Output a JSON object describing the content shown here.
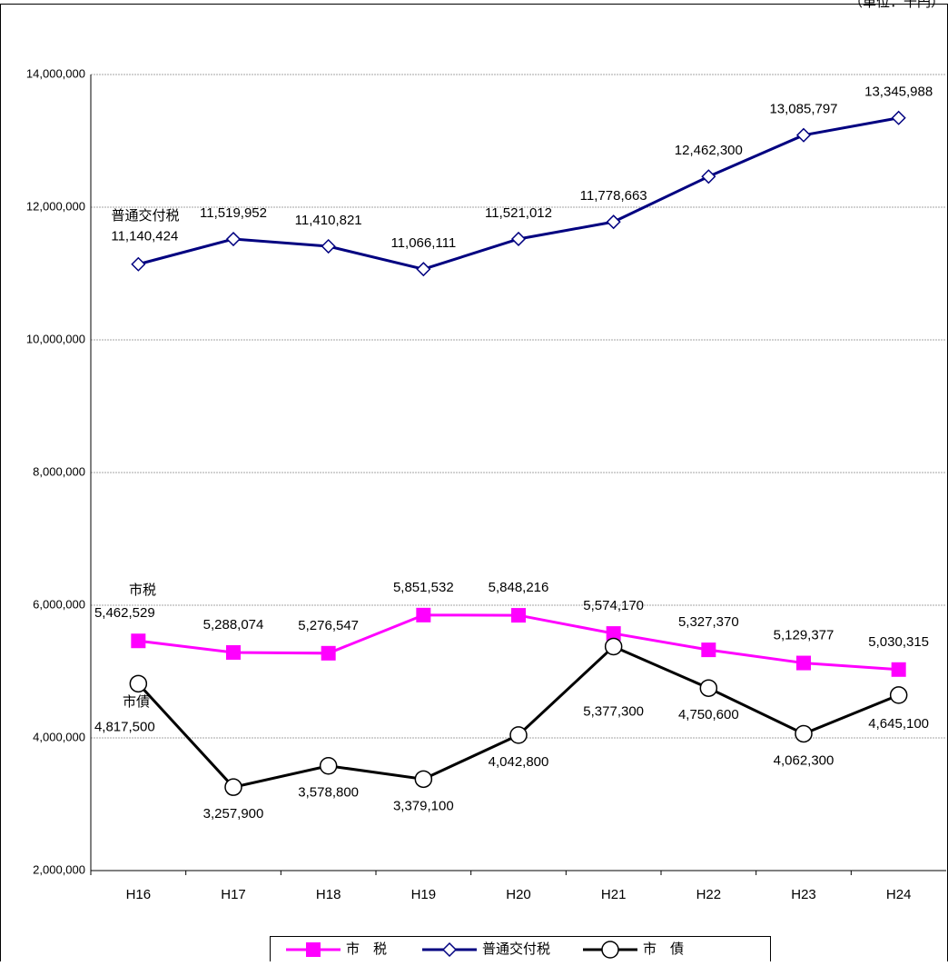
{
  "chart_data": {
    "type": "line",
    "unit_note": "（単位：千円）",
    "categories": [
      "H16",
      "H17",
      "H18",
      "H19",
      "H20",
      "H21",
      "H22",
      "H23",
      "H24"
    ],
    "series": [
      {
        "name": "市　税",
        "color": "#ff00ff",
        "marker": "square",
        "values": [
          5462529,
          5288074,
          5276547,
          5851532,
          5848216,
          5574170,
          5327370,
          5129377,
          5030315
        ],
        "value_labels": [
          "5,462,529",
          "5,288,074",
          "5,276,547",
          "5,851,532",
          "5,848,216",
          "5,574,170",
          "5,327,370",
          "5,129,377",
          "5,030,315"
        ]
      },
      {
        "name": "普通交付税",
        "color": "#000080",
        "marker": "diamond",
        "values": [
          11140424,
          11519952,
          11410821,
          11066111,
          11521012,
          11778663,
          12462300,
          13085797,
          13345988
        ],
        "value_labels": [
          "11,140,424",
          "11,519,952",
          "11,410,821",
          "11,066,111",
          "11,521,012",
          "11,778,663",
          "12,462,300",
          "13,085,797",
          "13,345,988"
        ]
      },
      {
        "name": "市　債",
        "color": "#000000",
        "marker": "circle",
        "values": [
          4817500,
          3257900,
          3578800,
          3379100,
          4042800,
          5377300,
          4750600,
          4062300,
          4645100
        ],
        "value_labels": [
          "4,817,500",
          "3,257,900",
          "3,578,800",
          "3,379,100",
          "4,042,800",
          "5,377,300",
          "4,750,600",
          "4,062,300",
          "4,645,100"
        ]
      }
    ],
    "annotations": [
      "普通交付税",
      "市税",
      "市債"
    ],
    "ylim": [
      2000000,
      14000000
    ],
    "yticks": [
      {
        "value": 2000000,
        "label": "2,000,000"
      },
      {
        "value": 4000000,
        "label": "4,000,000"
      },
      {
        "value": 6000000,
        "label": "6,000,000"
      },
      {
        "value": 8000000,
        "label": "8,000,000"
      },
      {
        "value": 10000000,
        "label": "10,000,000"
      },
      {
        "value": 12000000,
        "label": "12,000,000"
      },
      {
        "value": 14000000,
        "label": "14,000,000"
      }
    ],
    "grid": true,
    "legend": "bottom"
  }
}
